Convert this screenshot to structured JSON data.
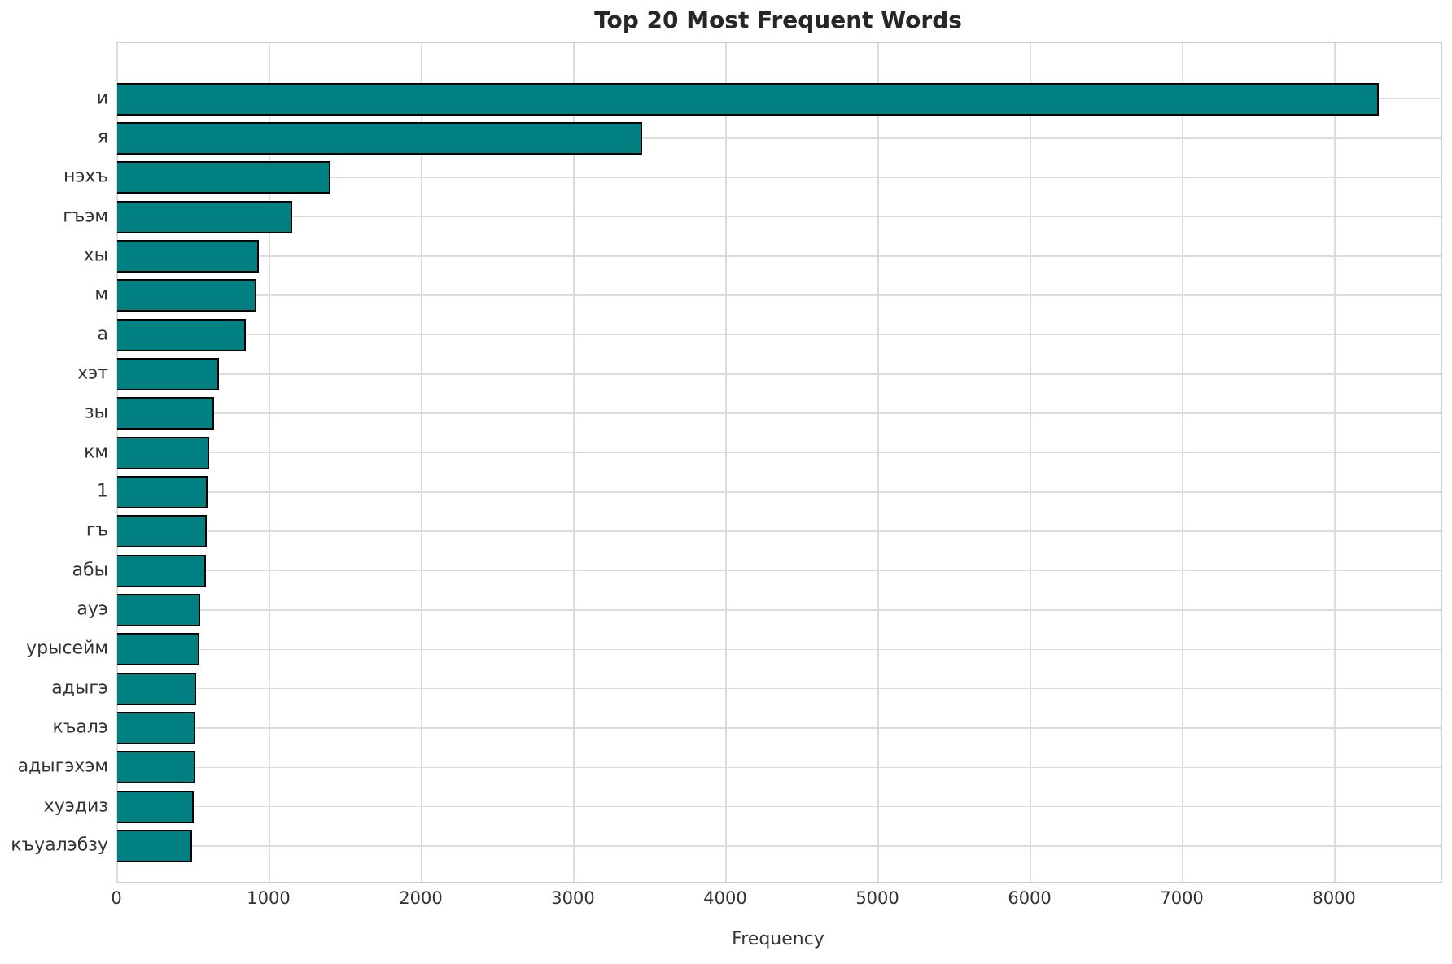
{
  "chart_data": {
    "type": "bar",
    "orientation": "horizontal",
    "title": "Top 20 Most Frequent Words",
    "xlabel": "Frequency",
    "ylabel": "",
    "categories": [
      "и",
      "я",
      "нэхъ",
      "гъэм",
      "хы",
      "м",
      "а",
      "хэт",
      "зы",
      "км",
      "1",
      "гъ",
      "абы",
      "ауэ",
      "урысейм",
      "адыгэ",
      "къалэ",
      "адыгэхэм",
      "хуэдиз",
      "къуалэбзу"
    ],
    "values": [
      8290,
      3450,
      1400,
      1150,
      930,
      915,
      845,
      670,
      635,
      605,
      595,
      590,
      585,
      545,
      540,
      520,
      515,
      513,
      505,
      490
    ],
    "xlim": [
      0,
      8700
    ],
    "xticks": [
      0,
      1000,
      2000,
      3000,
      4000,
      5000,
      6000,
      7000,
      8000
    ],
    "grid": true,
    "legend": false,
    "bar_color": "#008080",
    "bar_edge_color": "#000000",
    "grid_color": "#dcdcdc",
    "text_color": "#333333",
    "title_color": "#262626",
    "background": "#ffffff"
  }
}
